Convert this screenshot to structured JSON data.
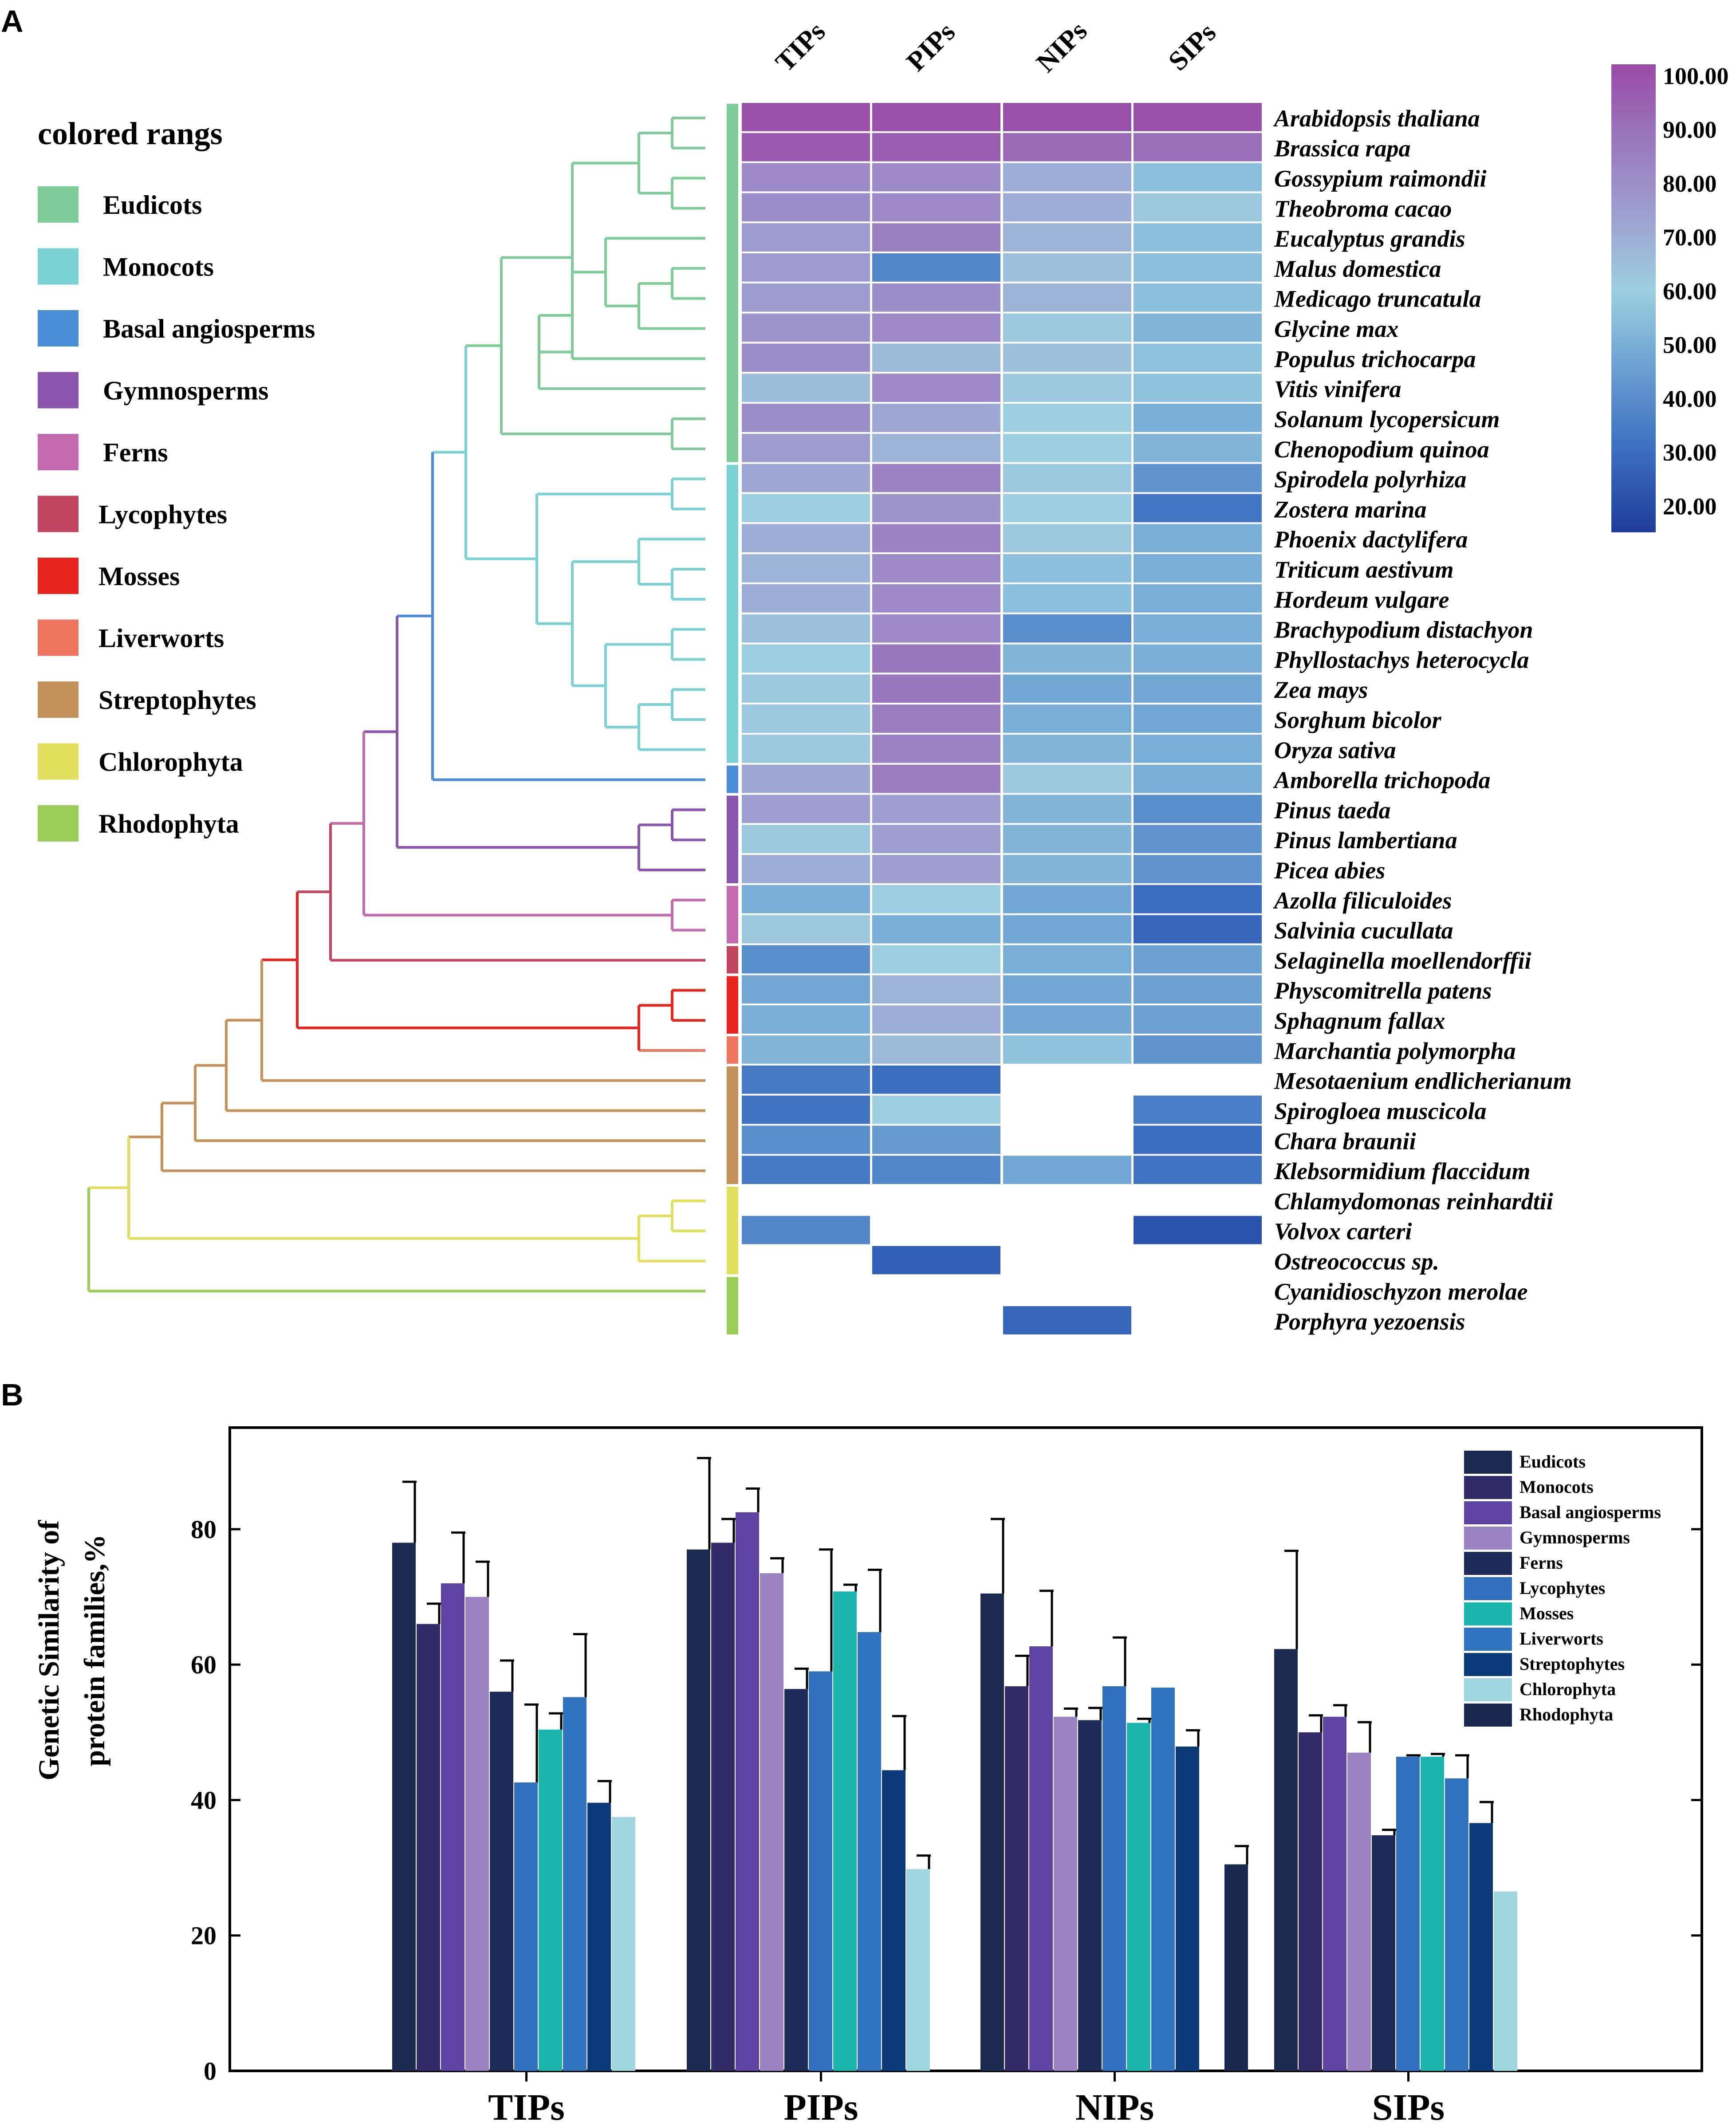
{
  "figure": {
    "panel_a_letter": "A",
    "panel_b_letter": "B"
  },
  "colored_ranges": {
    "title": "colored rangs",
    "items": [
      {
        "label": "Eudicots",
        "color": "#7fcc9a"
      },
      {
        "label": "Monocots",
        "color": "#7cd1d3"
      },
      {
        "label": "Basal angiosperms",
        "color": "#4a8dd6"
      },
      {
        "label": "Gymnosperms",
        "color": "#8a56ad"
      },
      {
        "label": "Ferns",
        "color": "#c46bb0"
      },
      {
        "label": "Lycophytes",
        "color": "#c24562"
      },
      {
        "label": "Mosses",
        "color": "#e8251f"
      },
      {
        "label": "Liverworts",
        "color": "#ec7660"
      },
      {
        "label": "Streptophytes",
        "color": "#c39159"
      },
      {
        "label": "Chlorophyta",
        "color": "#e0e05e"
      },
      {
        "label": "Rhodophyta",
        "color": "#9ccc5a"
      }
    ]
  },
  "chart_data": [
    {
      "type": "heatmap",
      "title": "",
      "columns": [
        "TIPs",
        "PIPs",
        "NIPs",
        "SIPs"
      ],
      "colorbar": {
        "ticks": [
          "100.00",
          "90.00",
          "80.00",
          "70.00",
          "60.00",
          "50.00",
          "40.00",
          "30.00",
          "20.00"
        ],
        "range": [
          15,
          102
        ],
        "stops": [
          {
            "v": 15,
            "color": "#1f3d99"
          },
          {
            "v": 30,
            "color": "#3b6cc0"
          },
          {
            "v": 45,
            "color": "#6a9ed1"
          },
          {
            "v": 60,
            "color": "#9dcfe0"
          },
          {
            "v": 75,
            "color": "#9e9ccf"
          },
          {
            "v": 88,
            "color": "#9a78bd"
          },
          {
            "v": 102,
            "color": "#9a4aa6"
          }
        ]
      },
      "rows": [
        {
          "species": "Arabidopsis thaliana",
          "group": 0,
          "values": [
            100,
            100,
            100,
            100
          ]
        },
        {
          "species": "Brassica rapa",
          "group": 0,
          "values": [
            97,
            96,
            92,
            91
          ]
        },
        {
          "species": "Gossypium raimondii",
          "group": 0,
          "values": [
            82,
            82,
            70,
            55
          ]
        },
        {
          "species": "Theobroma cacao",
          "group": 0,
          "values": [
            80,
            82,
            70,
            62
          ]
        },
        {
          "species": "Eucalyptus grandis",
          "group": 0,
          "values": [
            75,
            85,
            68,
            55
          ]
        },
        {
          "species": "Malus domestica",
          "group": 0,
          "values": [
            76,
            38,
            64,
            55
          ]
        },
        {
          "species": "Medicago truncatula",
          "group": 0,
          "values": [
            75,
            80,
            68,
            55
          ]
        },
        {
          "species": "Glycine max",
          "group": 0,
          "values": [
            78,
            82,
            62,
            52
          ]
        },
        {
          "species": "Populus trichocarpa",
          "group": 0,
          "values": [
            80,
            66,
            64,
            56
          ]
        },
        {
          "species": "Vitis vinifera",
          "group": 0,
          "values": [
            65,
            82,
            62,
            56
          ]
        },
        {
          "species": "Solanum lycopersicum",
          "group": 0,
          "values": [
            80,
            72,
            60,
            50
          ]
        },
        {
          "species": "Chenopodium quinoa",
          "group": 0,
          "values": [
            75,
            68,
            60,
            52
          ]
        },
        {
          "species": "Spirodela polyrhiza",
          "group": 1,
          "values": [
            72,
            84,
            62,
            42
          ]
        },
        {
          "species": "Zostera marina",
          "group": 1,
          "values": [
            60,
            78,
            60,
            33
          ]
        },
        {
          "species": "Phoenix dactylifera",
          "group": 1,
          "values": [
            70,
            84,
            62,
            50
          ]
        },
        {
          "species": "Triticum aestivum",
          "group": 1,
          "values": [
            68,
            82,
            55,
            50
          ]
        },
        {
          "species": "Hordeum vulgare",
          "group": 1,
          "values": [
            70,
            82,
            55,
            50
          ]
        },
        {
          "species": "Brachypodium distachyon",
          "group": 1,
          "values": [
            64,
            82,
            40,
            50
          ]
        },
        {
          "species": "Phyllostachys heterocycla",
          "group": 1,
          "values": [
            60,
            88,
            52,
            50
          ]
        },
        {
          "species": "Zea mays",
          "group": 1,
          "values": [
            62,
            88,
            48,
            48
          ]
        },
        {
          "species": "Sorghum bicolor",
          "group": 1,
          "values": [
            62,
            86,
            50,
            48
          ]
        },
        {
          "species": "Oryza sativa",
          "group": 1,
          "values": [
            62,
            84,
            52,
            50
          ]
        },
        {
          "species": "Amborella trichopoda",
          "group": 2,
          "values": [
            72,
            86,
            62,
            50
          ]
        },
        {
          "species": "Pinus taeda",
          "group": 3,
          "values": [
            74,
            74,
            52,
            40
          ]
        },
        {
          "species": "Pinus lambertiana",
          "group": 3,
          "values": [
            62,
            74,
            52,
            42
          ]
        },
        {
          "species": "Picea abies",
          "group": 3,
          "values": [
            70,
            74,
            52,
            42
          ]
        },
        {
          "species": "Azolla filiculoides",
          "group": 4,
          "values": [
            50,
            60,
            48,
            30
          ]
        },
        {
          "species": "Salvinia cucullata",
          "group": 4,
          "values": [
            62,
            50,
            48,
            28
          ]
        },
        {
          "species": "Selaginella moellendorffii",
          "group": 5,
          "values": [
            40,
            60,
            50,
            46
          ]
        },
        {
          "species": "Physcomitrella patens",
          "group": 6,
          "values": [
            48,
            68,
            48,
            46
          ]
        },
        {
          "species": "Sphagnum fallax",
          "group": 6,
          "values": [
            50,
            70,
            48,
            46
          ]
        },
        {
          "species": "Marchantia polymorpha",
          "group": 7,
          "values": [
            52,
            66,
            56,
            42
          ]
        },
        {
          "species": "Mesotaenium endlicherianum",
          "group": 8,
          "values": [
            34,
            30,
            null,
            null
          ]
        },
        {
          "species": "Spirogloea muscicola",
          "group": 8,
          "values": [
            32,
            60,
            null,
            35
          ]
        },
        {
          "species": "Chara braunii",
          "group": 8,
          "values": [
            40,
            44,
            null,
            30
          ]
        },
        {
          "species": "Klebsormidium flaccidum",
          "group": 8,
          "values": [
            34,
            38,
            48,
            32
          ]
        },
        {
          "species": "Chlamydomonas reinhardtii",
          "group": 9,
          "values": [
            null,
            null,
            null,
            null
          ]
        },
        {
          "species": "Volvox carteri",
          "group": 9,
          "values": [
            38,
            null,
            null,
            22
          ]
        },
        {
          "species": "Ostreococcus sp.",
          "group": 9,
          "values": [
            null,
            26,
            null,
            null
          ]
        },
        {
          "species": "Cyanidioschyzon merolae",
          "group": 10,
          "values": [
            null,
            null,
            null,
            null
          ]
        },
        {
          "species": "Porphyra yezoensis",
          "group": 10,
          "values": [
            null,
            null,
            28,
            null
          ]
        }
      ]
    },
    {
      "type": "bar",
      "title": "",
      "xlabel": "",
      "ylabel_line1": "Genetic Similarity of",
      "ylabel_line2": "protein families,%",
      "ylim": [
        0,
        95
      ],
      "yticks": [
        0,
        20,
        40,
        60,
        80
      ],
      "categories": [
        "TIPs",
        "PIPs",
        "NIPs",
        "SIPs"
      ],
      "series": [
        {
          "name": "Eudicots",
          "color": "#1b2a4e",
          "values": [
            78,
            77,
            70.5,
            62.3
          ],
          "errors": [
            9,
            13.5,
            11,
            14.5
          ]
        },
        {
          "name": "Monocots",
          "color": "#332b68",
          "values": [
            66,
            78,
            56.8,
            50
          ],
          "errors": [
            3,
            3.5,
            4.5,
            2.5
          ]
        },
        {
          "name": "Basal angiosperms",
          "color": "#5e43a2",
          "values": [
            72,
            82.5,
            62.7,
            52.3
          ],
          "errors": [
            7.5,
            3.5,
            8.2,
            1.7
          ]
        },
        {
          "name": "Gymnosperms",
          "color": "#9a82c3",
          "values": [
            70,
            73.5,
            52.3,
            47
          ],
          "errors": [
            5.2,
            2.2,
            1.2,
            4.5
          ]
        },
        {
          "name": "Ferns",
          "color": "#1e2b59",
          "values": [
            56,
            56.4,
            51.8,
            34.8
          ],
          "errors": [
            4.6,
            3,
            1.8,
            0.8
          ]
        },
        {
          "name": "Lycophytes",
          "color": "#2f6fbd",
          "values": [
            42.6,
            59,
            56.8,
            46.4
          ],
          "errors": [
            11.5,
            18,
            7.2,
            0.2
          ]
        },
        {
          "name": "Mosses",
          "color": "#1cb5ad",
          "values": [
            50.4,
            70.8,
            51.4,
            46.4
          ],
          "errors": [
            2.4,
            1,
            0.6,
            0.4
          ]
        },
        {
          "name": "Liverworts",
          "color": "#2f73be",
          "values": [
            55.2,
            64.8,
            56.6,
            43.2
          ],
          "errors": [
            9.3,
            9.2,
            0,
            3.4
          ]
        },
        {
          "name": "Streptophytes",
          "color": "#0c3a78",
          "values": [
            39.6,
            44.4,
            47.9,
            36.6
          ],
          "errors": [
            3.2,
            8,
            2.4,
            3.1
          ]
        },
        {
          "name": "Chlorophyta",
          "color": "#9fd6e0",
          "values": [
            37.5,
            29.8,
            null,
            26.5
          ],
          "errors": [
            0,
            2,
            null,
            0
          ]
        },
        {
          "name": "Rhodophyta",
          "color": "#1a2850",
          "values": [
            null,
            null,
            30.5,
            null
          ],
          "errors": [
            null,
            null,
            2.7,
            null
          ]
        }
      ]
    }
  ]
}
